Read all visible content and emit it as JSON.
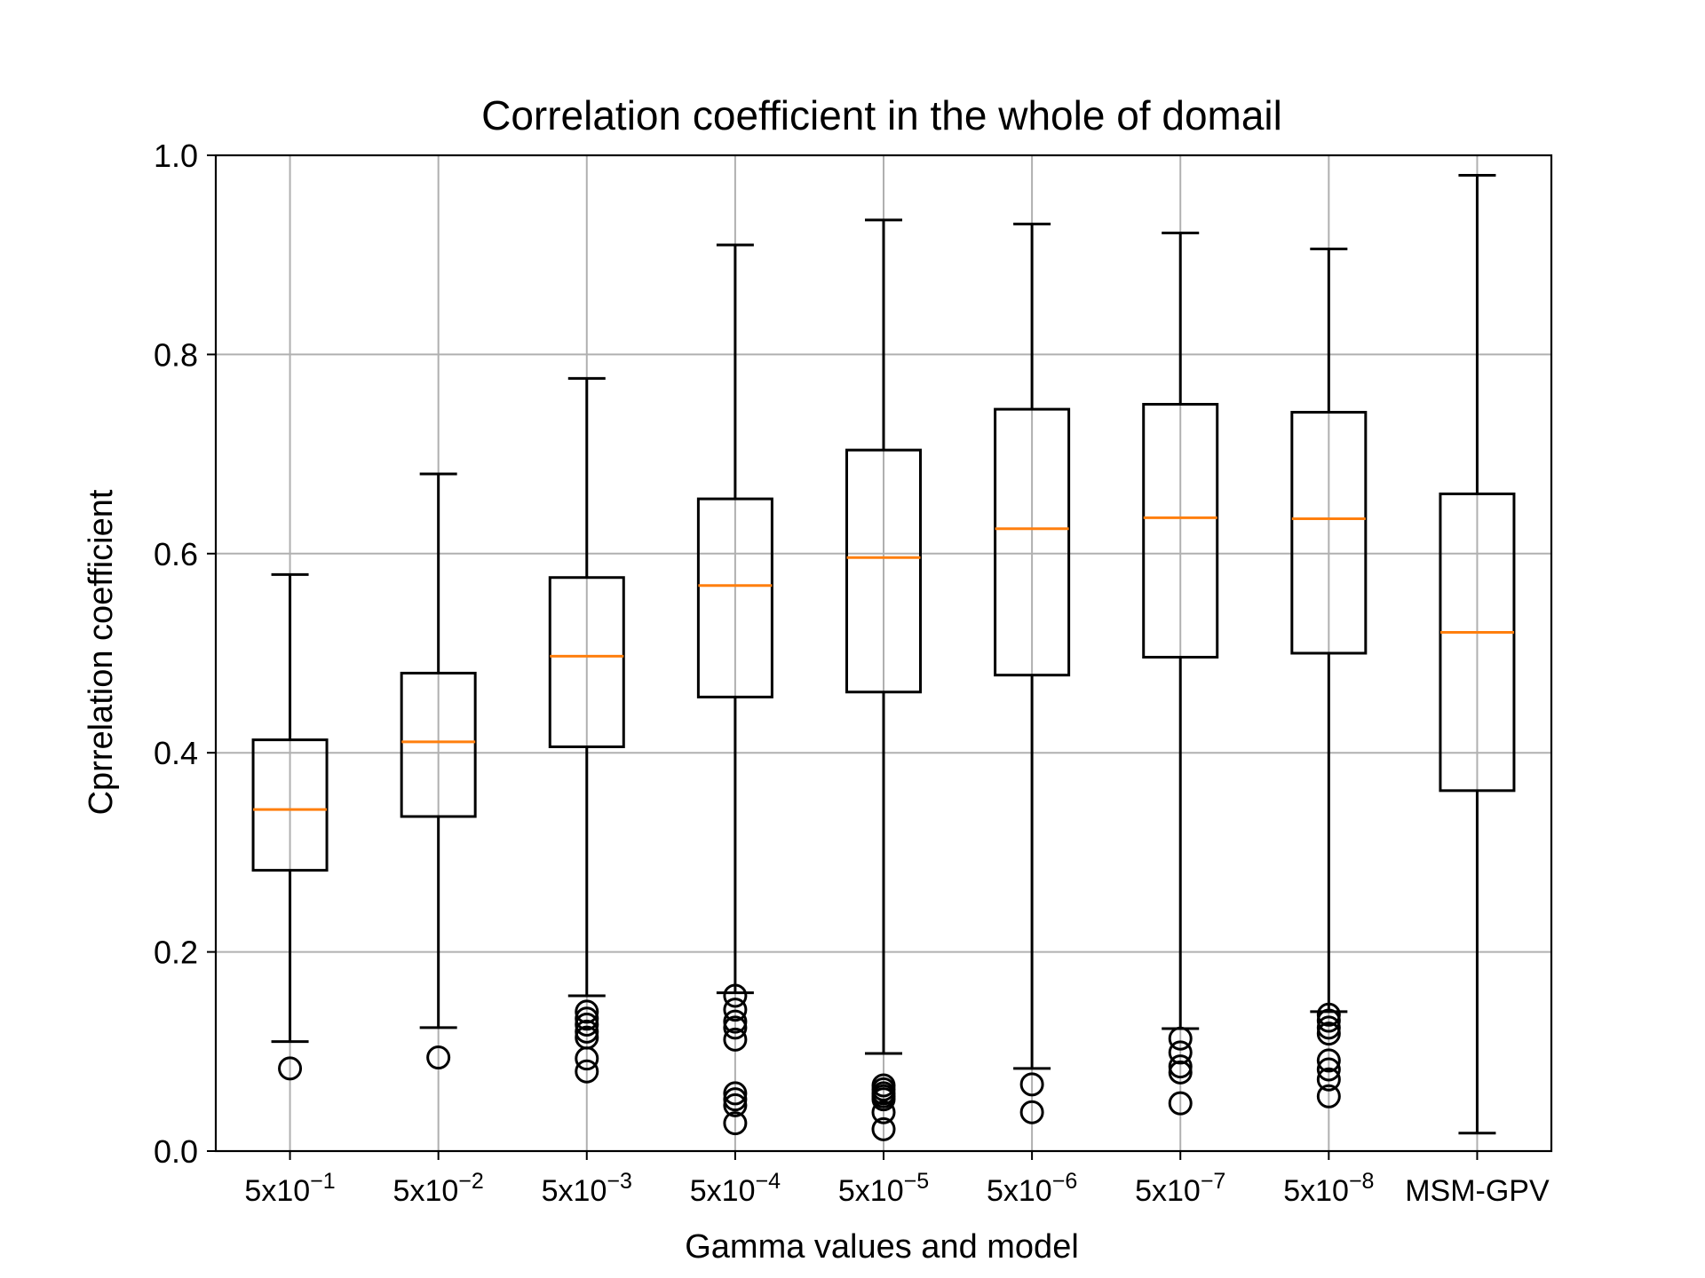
{
  "chart_data": {
    "type": "box",
    "title": "Correlation coefficient in the whole of domail",
    "xlabel": "Gamma values and model",
    "ylabel": "Cprrelation coefficient",
    "ylim": [
      0.0,
      1.0
    ],
    "yticks": [
      "0.0",
      "0.2",
      "0.4",
      "0.6",
      "0.8",
      "1.0"
    ],
    "grid": true,
    "categories": [
      {
        "base": "5x10",
        "exp": "−1"
      },
      {
        "base": "5x10",
        "exp": "−2"
      },
      {
        "base": "5x10",
        "exp": "−3"
      },
      {
        "base": "5x10",
        "exp": "−4"
      },
      {
        "base": "5x10",
        "exp": "−5"
      },
      {
        "base": "5x10",
        "exp": "−6"
      },
      {
        "base": "5x10",
        "exp": "−7"
      },
      {
        "base": "5x10",
        "exp": "−8"
      },
      {
        "base": "MSM-GPV",
        "exp": ""
      }
    ],
    "boxes": [
      {
        "whislo": 0.11,
        "q1": 0.282,
        "median": 0.343,
        "q3": 0.413,
        "whishi": 0.579,
        "fliers": [
          0.083
        ]
      },
      {
        "whislo": 0.124,
        "q1": 0.336,
        "median": 0.411,
        "q3": 0.48,
        "whishi": 0.68,
        "fliers": [
          0.094
        ]
      },
      {
        "whislo": 0.156,
        "q1": 0.406,
        "median": 0.497,
        "q3": 0.576,
        "whishi": 0.776,
        "fliers": [
          0.14,
          0.133,
          0.127,
          0.12,
          0.114,
          0.093,
          0.08
        ]
      },
      {
        "whislo": 0.159,
        "q1": 0.456,
        "median": 0.568,
        "q3": 0.655,
        "whishi": 0.91,
        "fliers": [
          0.156,
          0.142,
          0.13,
          0.124,
          0.112,
          0.058,
          0.052,
          0.046,
          0.028
        ]
      },
      {
        "whislo": 0.098,
        "q1": 0.461,
        "median": 0.596,
        "q3": 0.704,
        "whishi": 0.935,
        "fliers": [
          0.066,
          0.062,
          0.058,
          0.055,
          0.052,
          0.039,
          0.022
        ]
      },
      {
        "whislo": 0.083,
        "q1": 0.478,
        "median": 0.625,
        "q3": 0.745,
        "whishi": 0.931,
        "fliers": [
          0.067,
          0.039
        ]
      },
      {
        "whislo": 0.123,
        "q1": 0.496,
        "median": 0.636,
        "q3": 0.75,
        "whishi": 0.922,
        "fliers": [
          0.113,
          0.099,
          0.085,
          0.079,
          0.048
        ]
      },
      {
        "whislo": 0.14,
        "q1": 0.5,
        "median": 0.635,
        "q3": 0.742,
        "whishi": 0.906,
        "fliers": [
          0.137,
          0.131,
          0.124,
          0.118,
          0.091,
          0.082,
          0.072,
          0.055
        ]
      },
      {
        "whislo": 0.018,
        "q1": 0.362,
        "median": 0.521,
        "q3": 0.66,
        "whishi": 0.98,
        "fliers": []
      }
    ],
    "colors": {
      "box": "#000000",
      "median": "#ff7f0e",
      "grid": "#b0b0b0",
      "background": "#ffffff"
    }
  }
}
